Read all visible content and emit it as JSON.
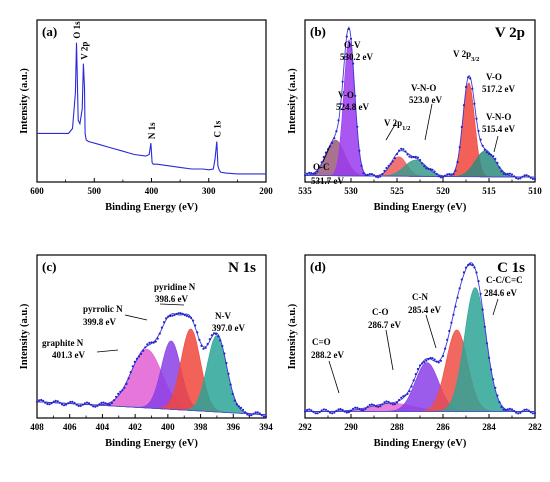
{
  "chart_data": [
    {
      "type": "line",
      "panel_label": "(a)",
      "xlabel": "Binding Energy (eV)",
      "ylabel": "Intensity (a.u.)",
      "xlim": [
        600,
        200
      ],
      "xticks": [
        "600",
        "500",
        "400",
        "300",
        "200"
      ],
      "x": [
        600,
        570,
        545,
        538,
        533,
        531,
        530,
        528,
        525,
        521,
        519,
        517,
        516,
        514,
        510,
        490,
        470,
        450,
        430,
        410,
        404,
        401,
        399,
        397,
        390,
        370,
        350,
        330,
        310,
        300,
        292,
        289,
        286,
        284,
        282,
        279,
        270,
        250,
        230,
        200
      ],
      "y": [
        0.3,
        0.3,
        0.3,
        0.33,
        0.55,
        0.86,
        0.7,
        0.38,
        0.36,
        0.45,
        0.73,
        0.58,
        0.3,
        0.26,
        0.25,
        0.23,
        0.21,
        0.19,
        0.17,
        0.16,
        0.17,
        0.24,
        0.12,
        0.11,
        0.11,
        0.1,
        0.09,
        0.08,
        0.08,
        0.075,
        0.08,
        0.14,
        0.25,
        0.1,
        0.075,
        0.06,
        0.055,
        0.05,
        0.05,
        0.05
      ],
      "labels": [
        {
          "text": "O 1s",
          "x": 530.2
        },
        {
          "text": "V 2p",
          "x": 517.2
        },
        {
          "text": "N 1s",
          "x": 399.0
        },
        {
          "text": "C 1s",
          "x": 284.6
        }
      ]
    },
    {
      "type": "area",
      "panel_label": "(b)",
      "element_title": "V 2p",
      "xlabel": "Binding Energy (eV)",
      "ylabel": "Intensity (a.u.)",
      "xlim": [
        535,
        510
      ],
      "xticks": [
        "535",
        "530",
        "525",
        "520",
        "515",
        "510"
      ],
      "baseline": [
        {
          "x": 535,
          "y": 0.04
        },
        {
          "x": 510,
          "y": 0.03
        }
      ],
      "peaks": [
        {
          "label": "O-C",
          "energy": "531.7 eV",
          "center": 531.7,
          "height": 0.22,
          "fwhm": 2.4,
          "color": "#9a5a7a"
        },
        {
          "label": "O-V",
          "energy": "530.2 eV",
          "center": 530.2,
          "height": 0.84,
          "fwhm": 1.4,
          "color": "#9b3af0"
        },
        {
          "label": "V-O",
          "energy": "524.8 eV",
          "center": 524.8,
          "height": 0.12,
          "fwhm": 2.0,
          "color": "#ee5a5a"
        },
        {
          "label": "V-N-O",
          "energy": "523.0 eV",
          "center": 523.0,
          "height": 0.1,
          "fwhm": 2.8,
          "color": "#3a9a8a"
        },
        {
          "label": "V 2p3/2",
          "energy": "517.2 eV",
          "center": 517.2,
          "height": 0.58,
          "fwhm": 1.5,
          "color": "#f0443a"
        },
        {
          "label": "V-N-O",
          "energy": "515.4 eV",
          "center": 515.4,
          "height": 0.16,
          "fwhm": 2.6,
          "color": "#2e8b7e"
        }
      ],
      "annotations": [
        "O-V",
        "530.2 eV",
        "V-O",
        "524.8 eV",
        "V 2p1/2",
        "V-N-O",
        "523.0 eV",
        "V 2p3/2",
        "V-O",
        "517.2 eV",
        "V-N-O",
        "515.4 eV",
        "O-C",
        "531.7 eV"
      ]
    },
    {
      "type": "area",
      "panel_label": "(c)",
      "element_title": "N 1s",
      "xlabel": "Binding Energy (eV)",
      "ylabel": "Intensity (a.u.)",
      "xlim": [
        408,
        394
      ],
      "xticks": [
        "408",
        "406",
        "404",
        "402",
        "400",
        "398",
        "396",
        "394"
      ],
      "baseline": [
        {
          "x": 408,
          "y": 0.1
        },
        {
          "x": 394,
          "y": 0.02
        }
      ],
      "peaks": [
        {
          "label": "graphite N",
          "energy": "401.3 eV",
          "center": 401.3,
          "height": 0.36,
          "fwhm": 2.2,
          "color": "#e25ed2"
        },
        {
          "label": "pyrrolic N",
          "energy": "399.8 eV",
          "center": 399.8,
          "height": 0.42,
          "fwhm": 1.4,
          "color": "#8a3fe6"
        },
        {
          "label": "pyridine N",
          "energy": "398.6 eV",
          "center": 398.6,
          "height": 0.5,
          "fwhm": 1.4,
          "color": "#f0463c"
        },
        {
          "label": "N-V",
          "energy": "397.0 eV",
          "center": 397.0,
          "height": 0.47,
          "fwhm": 1.4,
          "color": "#2aa597"
        }
      ],
      "annotations": [
        "pyridine N",
        "398.6 eV",
        "pyrrolic N",
        "399.8 eV",
        "N-V",
        "397.0 eV",
        "graphite N",
        "401.3 eV"
      ]
    },
    {
      "type": "area",
      "panel_label": "(d)",
      "element_title": "C 1s",
      "xlabel": "Binding Energy (eV)",
      "ylabel": "Intensity (a.u.)",
      "xlim": [
        292,
        282
      ],
      "xticks": [
        "292",
        "290",
        "288",
        "286",
        "284",
        "282"
      ],
      "baseline": [
        {
          "x": 292,
          "y": 0.04
        },
        {
          "x": 282,
          "y": 0.04
        }
      ],
      "peaks": [
        {
          "label": "C=O",
          "energy": "288.2 eV",
          "center": 288.2,
          "height": 0.05,
          "fwhm": 2.2,
          "color": "#e86ad6"
        },
        {
          "label": "C-O",
          "energy": "286.7 eV",
          "center": 286.7,
          "height": 0.3,
          "fwhm": 1.2,
          "color": "#8a3ee8"
        },
        {
          "label": "C-N",
          "energy": "285.4 eV",
          "center": 285.4,
          "height": 0.5,
          "fwhm": 1.1,
          "color": "#ef4d45"
        },
        {
          "label": "C-C/C=C",
          "energy": "284.6 eV",
          "center": 284.6,
          "height": 0.76,
          "fwhm": 1.1,
          "color": "#2ea596"
        }
      ],
      "annotations": [
        "C-C/C=C",
        "284.6 eV",
        "C-N",
        "285.4 eV",
        "C-O",
        "286.7 eV",
        "C=O",
        "288.2 eV"
      ]
    }
  ]
}
